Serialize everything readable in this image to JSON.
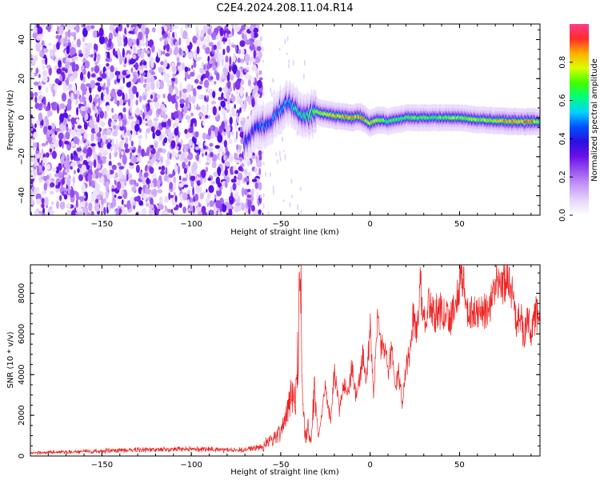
{
  "title": "C2E4.2024.208.11.04.R14",
  "chart_data": [
    {
      "type": "heatmap",
      "xlabel": "Height of straight line (km)",
      "ylabel": "Frequency (Hz)",
      "xlim": [
        -190,
        95
      ],
      "ylim": [
        -50,
        48
      ],
      "xticks": [
        -150,
        -100,
        -50,
        0,
        50
      ],
      "yticks": [
        -40,
        -20,
        0,
        20,
        40
      ],
      "colorbar": {
        "label": "Normalized spectral amplitude",
        "range": [
          0,
          1
        ],
        "ticks": [
          0.0,
          0.2,
          0.4,
          0.6,
          0.8
        ],
        "colormap": [
          "#ffffff",
          "#e6d6fb",
          "#c79af7",
          "#9a55f0",
          "#6a10e8",
          "#2a10e0",
          "#0050ff",
          "#00d2ff",
          "#00ff80",
          "#40ff00",
          "#d8ff00",
          "#ffb000",
          "#ff2a2a",
          "#ff3c8c"
        ]
      },
      "ridge": {
        "start_km": -70,
        "x_km": [
          -70,
          -65,
          -60,
          -55,
          -50,
          -45,
          -40,
          -35,
          -30,
          -25,
          -20,
          -15,
          -10,
          -5,
          0,
          5,
          10,
          15,
          20,
          30,
          40,
          50,
          60,
          70,
          80,
          90,
          95
        ],
        "freq_hz": [
          -12,
          -7,
          -4,
          -2,
          4,
          8,
          3,
          1,
          3,
          2,
          1,
          0.5,
          0,
          0.5,
          -3,
          -1,
          -2,
          -1,
          0,
          0,
          0,
          0,
          -1,
          -1.5,
          -2,
          -2,
          -2
        ],
        "amplitude": [
          0.45,
          0.45,
          0.5,
          0.5,
          0.55,
          0.55,
          0.65,
          0.7,
          0.75,
          0.8,
          0.85,
          0.88,
          0.92,
          0.9,
          0.85,
          0.75,
          0.7,
          0.7,
          0.72,
          0.72,
          0.72,
          0.74,
          0.78,
          0.82,
          0.9,
          0.95,
          0.7
        ]
      },
      "noise_extent_km": [
        -190,
        -65
      ]
    },
    {
      "type": "line",
      "xlabel": "Height of straight line (km)",
      "ylabel": "SNR (10 * v/v)",
      "xlim": [
        -190,
        95
      ],
      "ylim": [
        0,
        9400
      ],
      "xticks": [
        -150,
        -100,
        -50,
        0,
        50
      ],
      "yticks": [
        0,
        2000,
        4000,
        6000,
        8000
      ],
      "color": "#ee2222",
      "series": [
        {
          "x": [
            -190,
            -180,
            -170,
            -160,
            -150,
            -140,
            -130,
            -120,
            -110,
            -100,
            -90,
            -80,
            -70,
            -60,
            -55,
            -50,
            -47,
            -44,
            -42,
            -40,
            -39,
            -38,
            -37,
            -36,
            -35,
            -33,
            -31,
            -29,
            -27,
            -25,
            -22,
            -20,
            -17,
            -15,
            -12,
            -10,
            -8,
            -6,
            -4,
            -2,
            0,
            2,
            4,
            6,
            8,
            10,
            12,
            14,
            16,
            18,
            20,
            22,
            24,
            26,
            28,
            30,
            33,
            36,
            40,
            44,
            48,
            50,
            52,
            54,
            56,
            58,
            60,
            63,
            66,
            70,
            72,
            74,
            76,
            78,
            80,
            82,
            84,
            86,
            88,
            90,
            92,
            95
          ],
          "y": [
            150,
            180,
            200,
            220,
            250,
            280,
            320,
            300,
            350,
            320,
            330,
            300,
            300,
            500,
            800,
            1200,
            1900,
            3200,
            2400,
            5800,
            9300,
            4000,
            1600,
            900,
            1500,
            600,
            3500,
            900,
            2000,
            3400,
            1600,
            4200,
            2200,
            3500,
            3200,
            4600,
            2900,
            3700,
            5000,
            3800,
            6300,
            3000,
            6600,
            5200,
            5600,
            4300,
            5300,
            3400,
            4000,
            2600,
            4200,
            5000,
            6800,
            6000,
            8500,
            6500,
            7600,
            7000,
            7200,
            6600,
            7600,
            8400,
            9200,
            7100,
            6800,
            7300,
            6900,
            7200,
            7100,
            8300,
            8600,
            8200,
            8800,
            8500,
            7900,
            6400,
            7200,
            5800,
            6900,
            6000,
            6800,
            7400
          ]
        }
      ]
    }
  ]
}
